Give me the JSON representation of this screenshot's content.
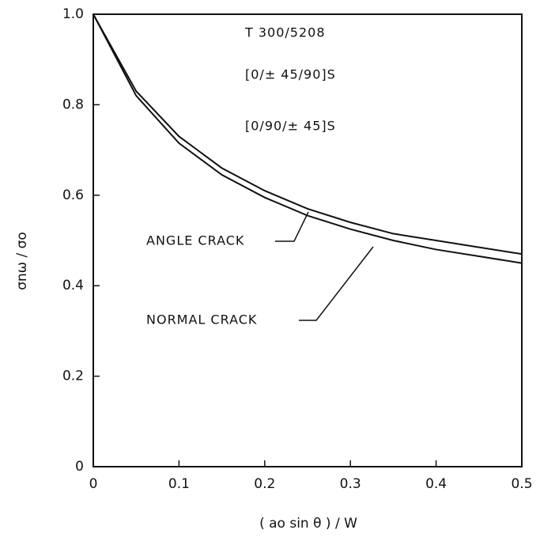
{
  "chart_data": {
    "type": "line",
    "x_label": "( ao sin θ ) / W",
    "y_label": "σnω / σo",
    "annotations": [
      "T 300/5208",
      "[0/± 45/90]S",
      "[0/90/± 45]S",
      "ANGLE CRACK",
      "NORMAL CRACK"
    ],
    "x": [
      0,
      0.05,
      0.1,
      0.15,
      0.2,
      0.25,
      0.3,
      0.35,
      0.4,
      0.45,
      0.5
    ],
    "series": [
      {
        "name": "ANGLE CRACK",
        "color": "#111111",
        "values": [
          1.0,
          0.83,
          0.73,
          0.66,
          0.61,
          0.57,
          0.54,
          0.515,
          0.5,
          0.485,
          0.47
        ]
      },
      {
        "name": "NORMAL CRACK",
        "color": "#111111",
        "values": [
          1.0,
          0.82,
          0.715,
          0.645,
          0.595,
          0.555,
          0.525,
          0.5,
          0.48,
          0.465,
          0.45
        ]
      }
    ],
    "xlim": [
      0,
      0.5
    ],
    "xticks": [
      0,
      0.1,
      0.2,
      0.3,
      0.4,
      0.5
    ],
    "ylim": [
      0,
      1
    ],
    "yticks": [
      0,
      0.2,
      0.4,
      0.6,
      0.8,
      {
        "value": 1,
        "label": "1.0"
      }
    ]
  }
}
